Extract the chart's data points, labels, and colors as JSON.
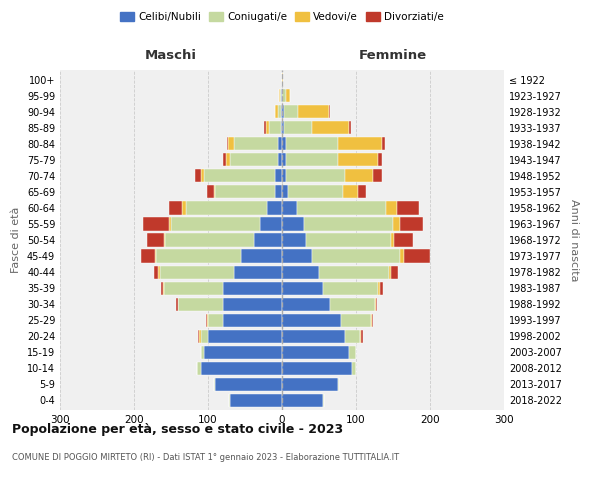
{
  "age_groups": [
    "0-4",
    "5-9",
    "10-14",
    "15-19",
    "20-24",
    "25-29",
    "30-34",
    "35-39",
    "40-44",
    "45-49",
    "50-54",
    "55-59",
    "60-64",
    "65-69",
    "70-74",
    "75-79",
    "80-84",
    "85-89",
    "90-94",
    "95-99",
    "100+"
  ],
  "birth_years": [
    "2018-2022",
    "2013-2017",
    "2008-2012",
    "2003-2007",
    "1998-2002",
    "1993-1997",
    "1988-1992",
    "1983-1987",
    "1978-1982",
    "1973-1977",
    "1968-1972",
    "1963-1967",
    "1958-1962",
    "1953-1957",
    "1948-1952",
    "1943-1947",
    "1938-1942",
    "1933-1937",
    "1928-1932",
    "1923-1927",
    "≤ 1922"
  ],
  "maschi": {
    "celibi": [
      70,
      90,
      110,
      105,
      100,
      80,
      80,
      80,
      65,
      55,
      38,
      30,
      20,
      10,
      10,
      5,
      5,
      2,
      1,
      1,
      0
    ],
    "coniugati": [
      2,
      2,
      5,
      5,
      10,
      20,
      60,
      80,
      100,
      115,
      120,
      120,
      110,
      80,
      95,
      65,
      60,
      15,
      4,
      2,
      0
    ],
    "vedovi": [
      0,
      0,
      0,
      0,
      2,
      1,
      1,
      1,
      2,
      2,
      2,
      3,
      5,
      2,
      5,
      6,
      8,
      5,
      4,
      1,
      0
    ],
    "divorziati": [
      0,
      0,
      0,
      0,
      2,
      2,
      2,
      3,
      6,
      18,
      22,
      35,
      18,
      10,
      8,
      4,
      2,
      2,
      0,
      0,
      0
    ]
  },
  "femmine": {
    "nubili": [
      55,
      75,
      95,
      90,
      85,
      80,
      65,
      55,
      50,
      40,
      32,
      30,
      20,
      8,
      5,
      5,
      5,
      3,
      3,
      0,
      0
    ],
    "coniugate": [
      2,
      2,
      5,
      10,
      20,
      40,
      60,
      75,
      95,
      120,
      115,
      120,
      120,
      75,
      80,
      70,
      70,
      38,
      18,
      5,
      0
    ],
    "vedove": [
      0,
      0,
      0,
      0,
      2,
      1,
      2,
      2,
      2,
      5,
      5,
      10,
      15,
      20,
      38,
      55,
      60,
      50,
      42,
      6,
      2
    ],
    "divorziate": [
      0,
      0,
      0,
      0,
      2,
      2,
      2,
      5,
      10,
      35,
      25,
      30,
      30,
      10,
      12,
      5,
      4,
      2,
      2,
      0,
      0
    ]
  },
  "colors": {
    "celibi": "#4472c4",
    "coniugati": "#c5d9a0",
    "vedovi": "#f0c040",
    "divorziati": "#c0392b"
  },
  "legend_labels": [
    "Celibi/Nubili",
    "Coniugati/e",
    "Vedovi/e",
    "Divorziati/e"
  ],
  "title": "Popolazione per età, sesso e stato civile - 2023",
  "subtitle": "COMUNE DI POGGIO MIRTETO (RI) - Dati ISTAT 1° gennaio 2023 - Elaborazione TUTTITALIA.IT",
  "xlabel_left": "Maschi",
  "xlabel_right": "Femmine",
  "ylabel_left": "Fasce di età",
  "ylabel_right": "Anni di nascita",
  "xlim": 300,
  "bg_color": "#f0f0f0",
  "grid_color": "#cccccc"
}
